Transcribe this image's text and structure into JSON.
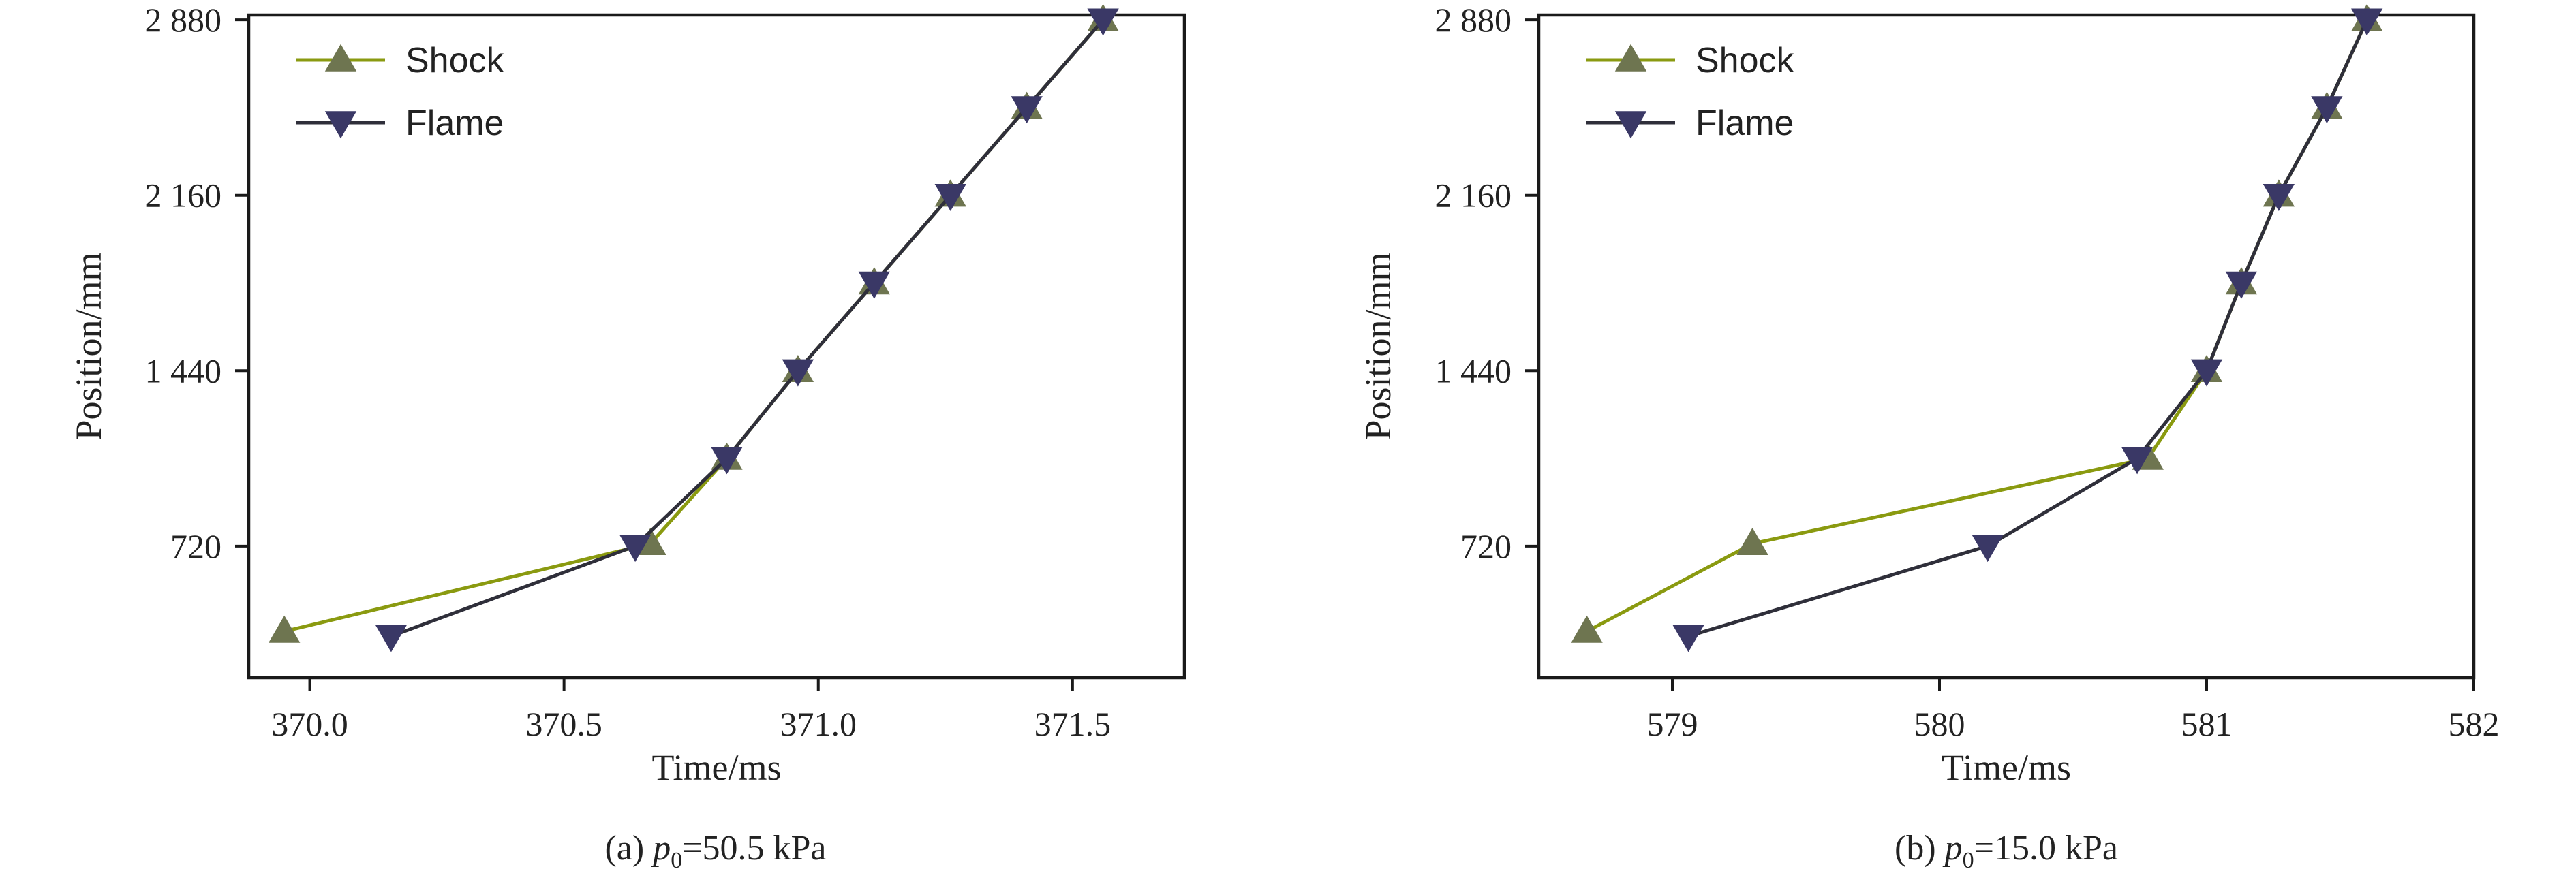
{
  "chart_data": [
    {
      "type": "line",
      "caption": {
        "prefix": "(a) ",
        "var": "p",
        "sub": "0",
        "rest": "=50.5 kPa"
      },
      "xlabel": "Time/ms",
      "ylabel": "Position/mm",
      "xlim": [
        369.88,
        371.72
      ],
      "ylim": [
        180,
        2900
      ],
      "xticks": [
        "370.0",
        "370.5",
        "371.0",
        "371.5"
      ],
      "xtick_values": [
        370.0,
        370.5,
        371.0,
        371.5
      ],
      "yticks": [
        "720",
        "1 440",
        "2 160",
        "2 880"
      ],
      "ytick_values": [
        720,
        1440,
        2160,
        2880
      ],
      "grid": false,
      "legend_position": "top-left",
      "series": [
        {
          "name": "Shock",
          "color": "#8a9a10",
          "marker_color": "#6e7550",
          "marker": "triangle-up",
          "x": [
            369.95,
            370.67,
            370.82,
            370.96,
            371.11,
            371.26,
            371.41,
            371.56
          ],
          "y": [
            370,
            730,
            1080,
            1440,
            1800,
            2160,
            2520,
            2880
          ]
        },
        {
          "name": "Flame",
          "color": "#2f2f3a",
          "marker_color": "#3a3866",
          "marker": "triangle-down",
          "x": [
            370.16,
            370.64,
            370.82,
            370.96,
            371.11,
            371.26,
            371.41,
            371.56
          ],
          "y": [
            350,
            720,
            1080,
            1440,
            1800,
            2160,
            2520,
            2880
          ]
        }
      ]
    },
    {
      "type": "line",
      "caption": {
        "prefix": "(b) ",
        "var": "p",
        "sub": "0",
        "rest": "=15.0 kPa"
      },
      "xlabel": "Time/ms",
      "ylabel": "Position/mm",
      "xlim": [
        578.5,
        582
      ],
      "ylim": [
        180,
        2900
      ],
      "xticks": [
        "579",
        "580",
        "581",
        "582"
      ],
      "xtick_values": [
        579,
        580,
        581,
        582
      ],
      "yticks": [
        "720",
        "1 440",
        "2 160",
        "2 880"
      ],
      "ytick_values": [
        720,
        1440,
        2160,
        2880
      ],
      "grid": false,
      "legend_position": "top-left",
      "series": [
        {
          "name": "Shock",
          "color": "#8a9a10",
          "marker_color": "#6e7550",
          "marker": "triangle-up",
          "x": [
            578.68,
            579.3,
            580.78,
            581.0,
            581.13,
            581.27,
            581.45,
            581.6
          ],
          "y": [
            370,
            730,
            1080,
            1440,
            1800,
            2160,
            2520,
            2880
          ]
        },
        {
          "name": "Flame",
          "color": "#2f2f3a",
          "marker_color": "#3a3866",
          "marker": "triangle-down",
          "x": [
            579.06,
            580.18,
            580.74,
            581.0,
            581.13,
            581.27,
            581.45,
            581.6
          ],
          "y": [
            350,
            720,
            1080,
            1440,
            1800,
            2160,
            2520,
            2880
          ]
        }
      ]
    }
  ]
}
